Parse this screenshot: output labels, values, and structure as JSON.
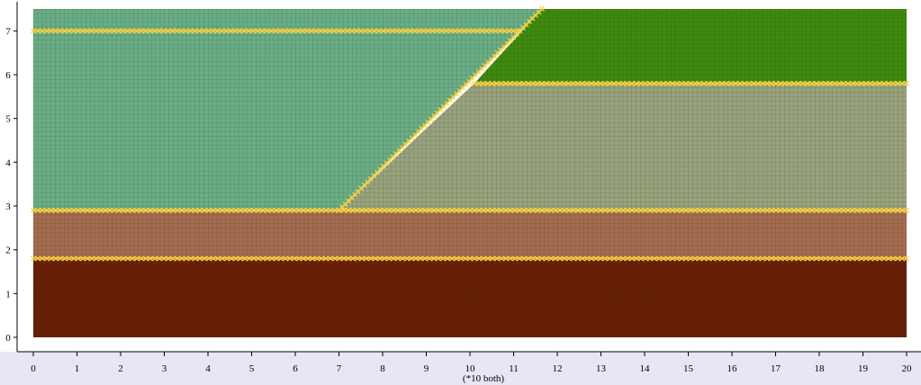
{
  "chart_data": {
    "type": "mesh",
    "axis_title": "(*10 both)",
    "x_ticks": [
      "0",
      "1",
      "2",
      "3",
      "4",
      "5",
      "6",
      "7",
      "8",
      "9",
      "10",
      "11",
      "12",
      "13",
      "14",
      "15",
      "16",
      "17",
      "18",
      "19",
      "20"
    ],
    "y_ticks": [
      "0",
      "1",
      "2",
      "3",
      "4",
      "5",
      "6",
      "7"
    ],
    "xlim": [
      0,
      20
    ],
    "ylim": [
      0,
      7.5
    ],
    "mesh_spacing": 0.1,
    "regions": [
      {
        "id": "bottom-layer",
        "color": "#6b1e06",
        "polygon": [
          [
            0,
            0
          ],
          [
            20,
            0
          ],
          [
            20,
            1.8
          ],
          [
            0,
            1.8
          ]
        ]
      },
      {
        "id": "lower-middle-layer",
        "color": "#a56b4e",
        "polygon": [
          [
            0,
            1.8
          ],
          [
            20,
            1.8
          ],
          [
            20,
            2.9
          ],
          [
            0,
            2.9
          ]
        ]
      },
      {
        "id": "right-middle-layer",
        "color": "#9aa27d",
        "polygon": [
          [
            7,
            2.9
          ],
          [
            20,
            2.9
          ],
          [
            20,
            5.8
          ],
          [
            10.1,
            5.8
          ]
        ]
      },
      {
        "id": "top-right-layer",
        "color": "#3f8a0e",
        "polygon": [
          [
            10.1,
            5.8
          ],
          [
            20,
            5.8
          ],
          [
            20,
            7.5
          ],
          [
            11.65,
            7.5
          ]
        ]
      },
      {
        "id": "left-upper-fill",
        "color": "#6aae86",
        "polygon": [
          [
            0,
            2.9
          ],
          [
            7,
            2.9
          ],
          [
            11.65,
            7.5
          ],
          [
            0,
            7.5
          ]
        ]
      }
    ],
    "boundary_lines": [
      {
        "id": "boundary-y1.8",
        "points": [
          [
            0,
            1.8
          ],
          [
            20,
            1.8
          ]
        ]
      },
      {
        "id": "boundary-y2.9",
        "points": [
          [
            0,
            2.9
          ],
          [
            20,
            2.9
          ]
        ]
      },
      {
        "id": "boundary-y5.8",
        "points": [
          [
            10.1,
            5.8
          ],
          [
            20,
            5.8
          ]
        ]
      },
      {
        "id": "boundary-y7",
        "points": [
          [
            0,
            7
          ],
          [
            11.1,
            7
          ]
        ]
      },
      {
        "id": "boundary-slope",
        "points": [
          [
            7,
            2.9
          ],
          [
            11.65,
            7.5
          ]
        ]
      }
    ],
    "colors": {
      "grid_line": "#1e3a1e",
      "boundary_line": "#e6b820",
      "boundary_marker": "#f4d44a",
      "axis_band": "#e6e6f5"
    }
  }
}
